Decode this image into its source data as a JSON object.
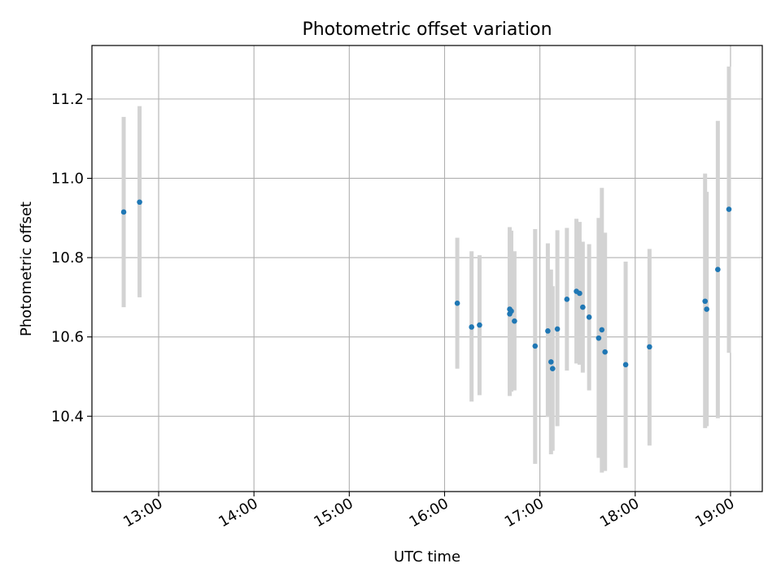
{
  "chart_data": {
    "type": "scatter",
    "title": "Photometric offset variation",
    "xlabel": "UTC time",
    "ylabel": "Photometric offset",
    "x_axis_kind": "time",
    "xlim": [
      "12:18",
      "19:20"
    ],
    "ylim": [
      10.21,
      11.335
    ],
    "x_ticks": [
      "13:00",
      "14:00",
      "15:00",
      "16:00",
      "17:00",
      "18:00",
      "19:00"
    ],
    "y_ticks": [
      "10.4",
      "10.6",
      "10.8",
      "11.0",
      "11.2"
    ],
    "grid": true,
    "colors": {
      "marker": "#1f77b4",
      "errorbar": "#d3d3d3",
      "grid": "#b0b0b0"
    },
    "series": [
      {
        "points": [
          {
            "t": "12:38",
            "y": 10.915,
            "lo": 10.675,
            "hi": 11.155
          },
          {
            "t": "12:48",
            "y": 10.94,
            "lo": 10.7,
            "hi": 11.182
          },
          {
            "t": "16:08",
            "y": 10.685,
            "lo": 10.52,
            "hi": 10.85
          },
          {
            "t": "16:17",
            "y": 10.625,
            "lo": 10.437,
            "hi": 10.816
          },
          {
            "t": "16:22",
            "y": 10.63,
            "lo": 10.453,
            "hi": 10.806
          },
          {
            "t": "16:41",
            "y": 10.67,
            "lo": 10.451,
            "hi": 10.877
          },
          {
            "t": "16:41",
            "y": 10.658,
            "lo": 10.47,
            "hi": 10.862
          },
          {
            "t": "16:42",
            "y": 10.665,
            "lo": 10.462,
            "hi": 10.868
          },
          {
            "t": "16:44",
            "y": 10.64,
            "lo": 10.465,
            "hi": 10.816
          },
          {
            "t": "16:57",
            "y": 10.577,
            "lo": 10.28,
            "hi": 10.872
          },
          {
            "t": "17:05",
            "y": 10.615,
            "lo": 10.398,
            "hi": 10.836
          },
          {
            "t": "17:07",
            "y": 10.537,
            "lo": 10.304,
            "hi": 10.77
          },
          {
            "t": "17:08",
            "y": 10.52,
            "lo": 10.313,
            "hi": 10.728
          },
          {
            "t": "17:11",
            "y": 10.62,
            "lo": 10.375,
            "hi": 10.869
          },
          {
            "t": "17:17",
            "y": 10.695,
            "lo": 10.515,
            "hi": 10.875
          },
          {
            "t": "17:23",
            "y": 10.715,
            "lo": 10.533,
            "hi": 10.898
          },
          {
            "t": "17:25",
            "y": 10.71,
            "lo": 10.53,
            "hi": 10.89
          },
          {
            "t": "17:27",
            "y": 10.675,
            "lo": 10.51,
            "hi": 10.84
          },
          {
            "t": "17:31",
            "y": 10.65,
            "lo": 10.465,
            "hi": 10.834
          },
          {
            "t": "17:37",
            "y": 10.597,
            "lo": 10.295,
            "hi": 10.9
          },
          {
            "t": "17:39",
            "y": 10.618,
            "lo": 10.258,
            "hi": 10.976
          },
          {
            "t": "17:41",
            "y": 10.562,
            "lo": 10.262,
            "hi": 10.863
          },
          {
            "t": "17:54",
            "y": 10.53,
            "lo": 10.27,
            "hi": 10.79
          },
          {
            "t": "18:09",
            "y": 10.575,
            "lo": 10.326,
            "hi": 10.822
          },
          {
            "t": "18:44",
            "y": 10.69,
            "lo": 10.37,
            "hi": 11.012
          },
          {
            "t": "18:45",
            "y": 10.67,
            "lo": 10.375,
            "hi": 10.966
          },
          {
            "t": "18:52",
            "y": 10.77,
            "lo": 10.395,
            "hi": 11.145
          },
          {
            "t": "18:59",
            "y": 10.922,
            "lo": 10.56,
            "hi": 11.282
          }
        ]
      }
    ]
  }
}
